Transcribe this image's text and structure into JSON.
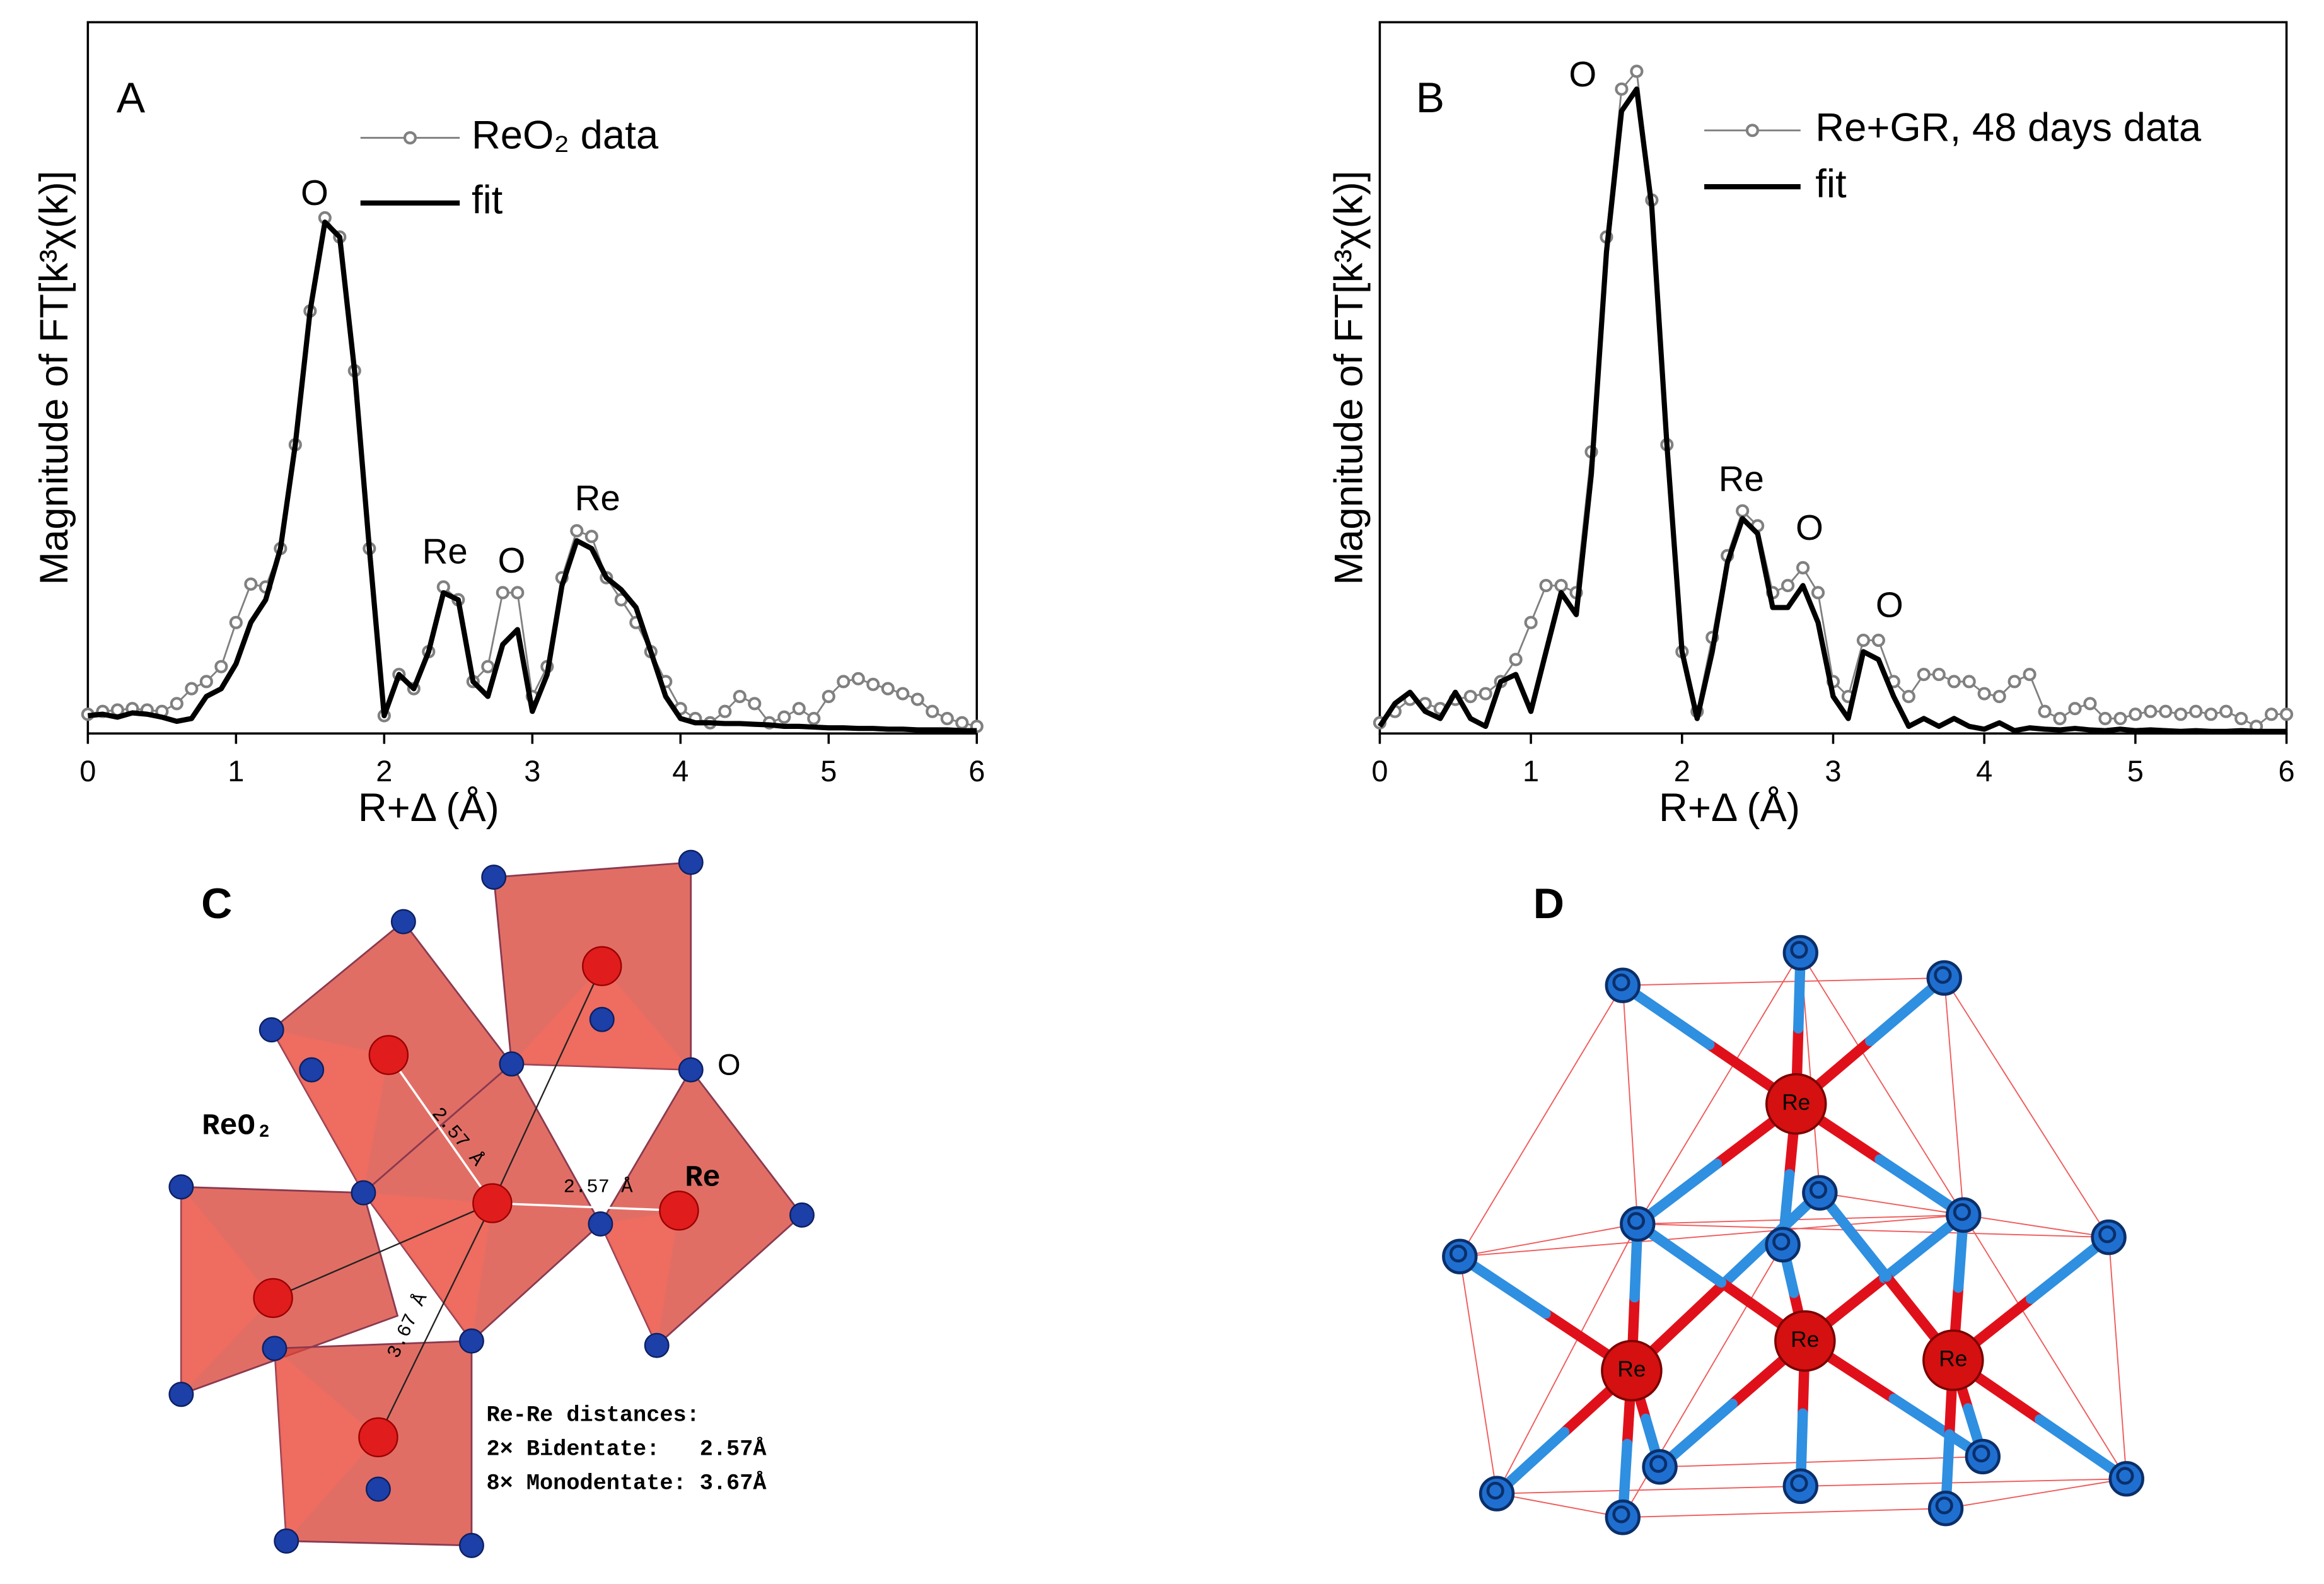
{
  "chart_data": [
    {
      "type": "line",
      "panel": "A",
      "xlabel": "R+Δ (Å)",
      "ylabel": "Magnitude of FT[k³χ(k)]",
      "x": [
        0,
        0.1,
        0.2,
        0.3,
        0.4,
        0.5,
        0.6,
        0.7,
        0.8,
        0.9,
        1,
        1.1,
        1.2,
        1.3,
        1.4,
        1.5,
        1.6,
        1.7,
        1.8,
        1.9,
        2,
        2.1,
        2.2,
        2.3,
        2.4,
        2.5,
        2.6,
        2.7,
        2.8,
        2.9,
        3,
        3.1,
        3.2,
        3.3,
        3.4,
        3.5,
        3.6,
        3.7,
        3.8,
        3.9,
        4,
        4.1,
        4.2,
        4.3,
        4.4,
        4.5,
        4.6,
        4.7,
        4.8,
        4.9,
        5,
        5.1,
        5.2,
        5.3,
        5.4,
        5.5,
        5.6,
        5.7,
        5.8,
        5.9,
        6
      ],
      "series": [
        {
          "name": "ReO₂ data",
          "color": "#808080",
          "marker": "o",
          "values": [
            2.7,
            3.1,
            3.3,
            3.5,
            3.3,
            3.1,
            4.2,
            6.3,
            7.3,
            9.4,
            15.6,
            21,
            20.6,
            26,
            40.6,
            59.4,
            72.5,
            69.8,
            51,
            26,
            2.5,
            8.3,
            6.3,
            11.5,
            20.6,
            18.8,
            7.3,
            9.4,
            19.8,
            19.8,
            5.2,
            9.4,
            21.9,
            28.5,
            27.7,
            21.9,
            18.8,
            15.6,
            11.5,
            7.3,
            3.5,
            2.1,
            1.5,
            3.1,
            5.2,
            4.2,
            1.5,
            2.3,
            3.5,
            2.1,
            5.2,
            7.3,
            7.7,
            6.9,
            6.3,
            5.6,
            4.8,
            3.1,
            2.1,
            1.5,
            1
          ]
        },
        {
          "name": "fit",
          "color": "#000000",
          "values": [
            2.5,
            2.7,
            2.3,
            2.9,
            2.7,
            2.3,
            1.7,
            2.1,
            5.2,
            6.3,
            9.8,
            15.6,
            18.8,
            26,
            40.6,
            59.4,
            71.9,
            69.8,
            51,
            26,
            2.5,
            8.3,
            6.3,
            11.5,
            19.8,
            18.8,
            7.3,
            5.2,
            12.5,
            14.6,
            3.1,
            8.3,
            20.8,
            27.1,
            26,
            21.9,
            20.2,
            17.7,
            11.5,
            5.2,
            2.1,
            1.5,
            1.5,
            1.4,
            1.4,
            1.3,
            1.2,
            1,
            1,
            0.9,
            0.8,
            0.8,
            0.7,
            0.7,
            0.6,
            0.6,
            0.5,
            0.5,
            0.5,
            0.4,
            0.4
          ]
        }
      ],
      "annotations": [
        "O",
        "Re",
        "O",
        "Re"
      ],
      "xlim": [
        0,
        6
      ],
      "xticks": [
        0,
        1,
        2,
        3,
        4,
        5,
        6
      ],
      "ylim": [
        0,
        100
      ]
    },
    {
      "type": "line",
      "panel": "B",
      "xlabel": "R+Δ (Å)",
      "ylabel": "Magnitude of FT[k³χ(k)]",
      "x": [
        0,
        0.1,
        0.2,
        0.3,
        0.4,
        0.5,
        0.6,
        0.7,
        0.8,
        0.9,
        1,
        1.1,
        1.2,
        1.3,
        1.4,
        1.5,
        1.6,
        1.7,
        1.8,
        1.9,
        2,
        2.1,
        2.2,
        2.3,
        2.4,
        2.5,
        2.6,
        2.7,
        2.8,
        2.9,
        3,
        3.1,
        3.2,
        3.3,
        3.4,
        3.5,
        3.6,
        3.7,
        3.8,
        3.9,
        4,
        4.1,
        4.2,
        4.3,
        4.4,
        4.5,
        4.6,
        4.7,
        4.8,
        4.9,
        5,
        5.1,
        5.2,
        5.3,
        5.4,
        5.5,
        5.6,
        5.7,
        5.8,
        5.9,
        6
      ],
      "series": [
        {
          "name": "Re+GR, 48 days data",
          "color": "#808080",
          "marker": "o",
          "values": [
            1.5,
            3.1,
            4.8,
            4.2,
            3.5,
            4.8,
            5.2,
            5.6,
            7.3,
            10.4,
            15.6,
            20.8,
            20.8,
            19.8,
            39.6,
            69.8,
            90.6,
            93.1,
            75,
            40.6,
            11.5,
            3.1,
            13.5,
            25,
            31.3,
            29.2,
            19.8,
            20.8,
            23.3,
            19.8,
            7.3,
            5.2,
            13.1,
            13.1,
            7.3,
            5.2,
            8.3,
            8.3,
            7.3,
            7.3,
            5.6,
            5.2,
            7.3,
            8.3,
            3.1,
            2.1,
            3.5,
            4.2,
            2.1,
            2.1,
            2.7,
            3.1,
            3.1,
            2.7,
            3.1,
            2.7,
            3.1,
            2.1,
            1,
            2.7,
            2.7
          ]
        },
        {
          "name": "fit",
          "color": "#000000",
          "values": [
            1,
            4.2,
            5.8,
            3.1,
            2.1,
            5.8,
            2.1,
            1,
            7.3,
            8.3,
            3.1,
            11.5,
            19.8,
            16.7,
            36.5,
            67.7,
            87.5,
            90.6,
            74,
            40.6,
            11.5,
            2.1,
            11.5,
            24,
            30.2,
            28.1,
            17.7,
            17.7,
            20.8,
            15.6,
            5.2,
            2.1,
            11.5,
            10.4,
            5.2,
            1,
            2.1,
            1,
            2.1,
            1,
            0.6,
            1.5,
            0.4,
            0.8,
            0.6,
            0.5,
            0.7,
            0.5,
            0.4,
            0.6,
            0.4,
            0.5,
            0.4,
            0.3,
            0.4,
            0.3,
            0.3,
            0.4,
            0.3,
            0.3,
            0.3
          ]
        }
      ],
      "annotations": [
        "O",
        "Re",
        "O",
        "O"
      ],
      "xlim": [
        0,
        6
      ],
      "xticks": [
        0,
        1,
        2,
        3,
        4,
        5,
        6
      ],
      "ylim": [
        0,
        100
      ]
    }
  ],
  "panels": {
    "C": {
      "label": "C",
      "compound": "ReO₂",
      "atom_labels": [
        "O",
        "Re"
      ],
      "distances": [
        "2.57 Å",
        "2.57 Å",
        "3.67 Å"
      ],
      "legend": [
        "Re-Re distances:",
        "2× Bidentate:   2.57Å",
        "8× Monodentate: 3.67Å"
      ]
    },
    "D": {
      "label": "D",
      "atom_labels": [
        "Re",
        "Re",
        "Re",
        "Re"
      ]
    }
  }
}
